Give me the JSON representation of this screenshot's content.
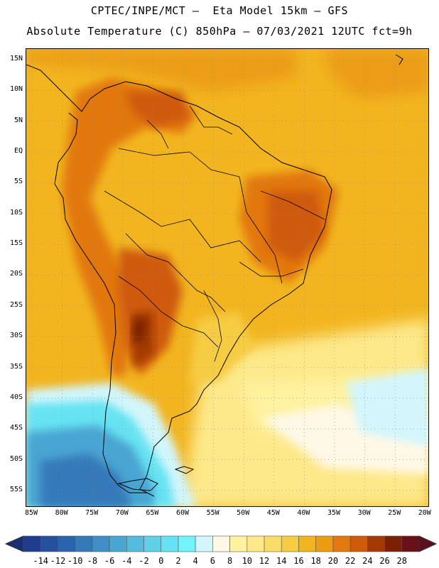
{
  "header": {
    "line1": "CPTEC/INPE/MCT –  Eta Model 15km – GFS",
    "line2": "Absolute Temperature (C) 850hPa – 07/03/2021 12UTC fct=9h"
  },
  "map": {
    "lat_labels": [
      "15N",
      "10N",
      "5N",
      "EQ",
      "5S",
      "10S",
      "15S",
      "20S",
      "25S",
      "30S",
      "35S",
      "40S",
      "45S",
      "50S",
      "55S"
    ],
    "lon_labels": [
      "85W",
      "80W",
      "75W",
      "70W",
      "65W",
      "60W",
      "55W",
      "50W",
      "45W",
      "40W",
      "35W",
      "30W",
      "25W",
      "20W"
    ],
    "grid": true,
    "grid_style": "dotted"
  },
  "colorbar": {
    "labels": [
      "-14",
      "-12",
      "-10",
      "-8",
      "-6",
      "-4",
      "-2",
      "0",
      "2",
      "4",
      "6",
      "8",
      "10",
      "12",
      "14",
      "16",
      "18",
      "20",
      "22",
      "24",
      "26",
      "28"
    ],
    "colors": [
      "#1f3d8f",
      "#25509e",
      "#2a64ad",
      "#3579b9",
      "#3f8fc6",
      "#49a5d2",
      "#55bbdd",
      "#5fd0e8",
      "#66e3f2",
      "#72f2fb",
      "#d2f6fc",
      "#fff8e6",
      "#fff2a0",
      "#fde98a",
      "#f9dd68",
      "#f6cc42",
      "#f2b520",
      "#ec9c12",
      "#e2780e",
      "#cf5a0a",
      "#a33a06",
      "#7a2004",
      "#6b0f18"
    ],
    "arrow_left_color": "#1a2f73",
    "arrow_right_color": "#5c0f1e"
  }
}
